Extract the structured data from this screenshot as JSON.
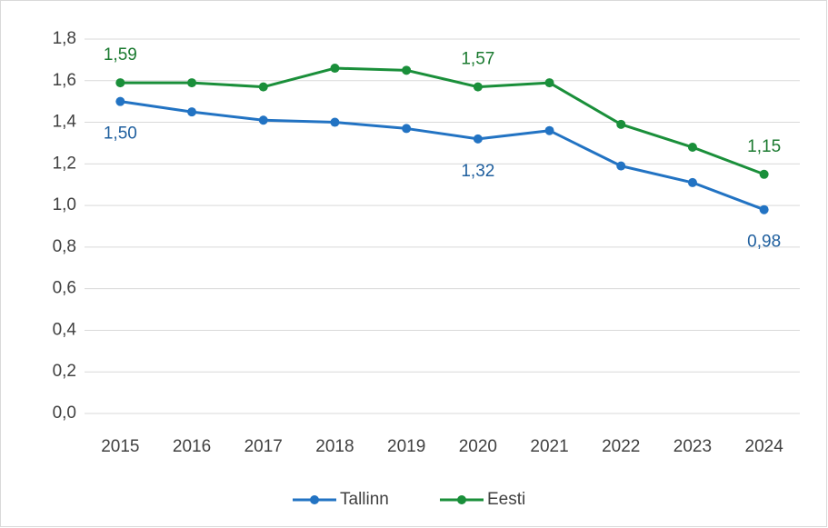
{
  "chart_data": {
    "type": "line",
    "categories": [
      "2015",
      "2016",
      "2017",
      "2018",
      "2019",
      "2020",
      "2021",
      "2022",
      "2023",
      "2024"
    ],
    "series": [
      {
        "name": "Tallinn",
        "color": "#2273c3",
        "label_color": "#1f5f9e",
        "values": [
          1.5,
          1.45,
          1.41,
          1.4,
          1.37,
          1.32,
          1.36,
          1.19,
          1.11,
          0.98
        ],
        "value_labels": [
          "1,50",
          null,
          null,
          null,
          null,
          "1,32",
          null,
          null,
          null,
          "0,98"
        ]
      },
      {
        "name": "Eesti",
        "color": "#1a8f3a",
        "label_color": "#1b7a30",
        "values": [
          1.59,
          1.59,
          1.57,
          1.66,
          1.65,
          1.57,
          1.59,
          1.39,
          1.28,
          1.15
        ],
        "value_labels": [
          "1,59",
          null,
          null,
          null,
          null,
          "1,57",
          null,
          null,
          null,
          "1,15"
        ]
      }
    ],
    "ylim": [
      0,
      1.8
    ],
    "yticks": [
      {
        "value": 0,
        "label": "0,0"
      },
      {
        "value": 0.2,
        "label": "0,2"
      },
      {
        "value": 0.4,
        "label": "0,4"
      },
      {
        "value": 0.6,
        "label": "0,6"
      },
      {
        "value": 0.8,
        "label": "0,8"
      },
      {
        "value": 1.0,
        "label": "1,0"
      },
      {
        "value": 1.2,
        "label": "1,2"
      },
      {
        "value": 1.4,
        "label": "1,4"
      },
      {
        "value": 1.6,
        "label": "1,6"
      },
      {
        "value": 1.8,
        "label": "1,8"
      }
    ],
    "grid": true,
    "legend": "bottom"
  }
}
